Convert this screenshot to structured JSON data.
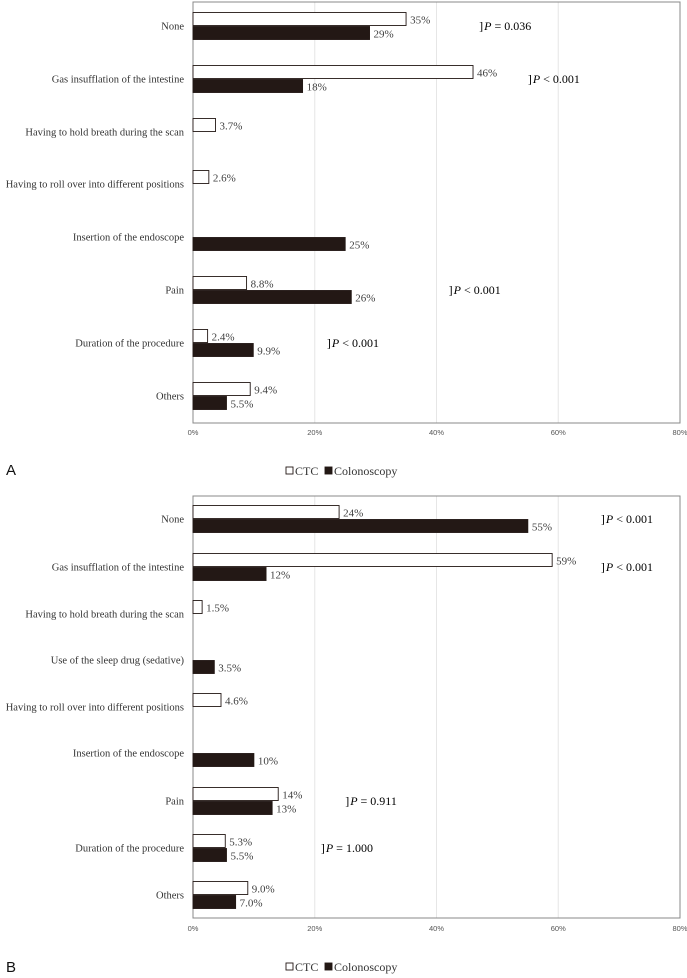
{
  "colors": {
    "ctc_fill": "#ffffff",
    "colonoscopy_fill": "#231815",
    "bar_stroke": "#231815",
    "grid": "#e6e6e6",
    "frame": "#888888"
  },
  "legend": {
    "items": [
      {
        "label": "CTC",
        "marker": "open-square"
      },
      {
        "label": "Colonoscopy",
        "marker": "filled-square"
      }
    ]
  },
  "chart_data": [
    {
      "panel_label": "A",
      "type": "bar",
      "orientation": "horizontal",
      "xlim": [
        0,
        80
      ],
      "x_ticks": [
        "0%",
        "20%",
        "40%",
        "60%",
        "80%"
      ],
      "grid": true,
      "legend_position": "bottom",
      "categories": [
        "None",
        "Gas insufflation of the intestine",
        "Having to hold breath during the scan",
        "Having to roll over into different positions",
        "Insertion of the endoscope",
        "Pain",
        "Duration of the procedure",
        "Others"
      ],
      "series": [
        {
          "name": "CTC",
          "values": [
            35,
            46,
            3.7,
            2.6,
            null,
            8.8,
            2.4,
            9.4
          ],
          "labels": [
            "35%",
            "46%",
            "3.7%",
            "2.6%",
            "",
            "8.8%",
            "2.4%",
            "9.4%"
          ]
        },
        {
          "name": "Colonoscopy",
          "values": [
            29,
            18,
            null,
            null,
            25,
            26,
            9.9,
            5.5
          ],
          "labels": [
            "29%",
            "18%",
            "",
            "",
            "25%",
            "26%",
            "9.9%",
            "5.5%"
          ]
        }
      ],
      "annotations": [
        {
          "category": "None",
          "p_label": "P",
          "rest": " = 0.036",
          "x_value": 47
        },
        {
          "category": "Gas insufflation of the intestine",
          "p_label": "P",
          "rest": " < 0.001",
          "x_value": 55
        },
        {
          "category": "Pain",
          "p_label": "P",
          "rest": " < 0.001",
          "x_value": 42
        },
        {
          "category": "Duration of the procedure",
          "p_label": "P",
          "rest": " < 0.001",
          "x_value": 22
        }
      ]
    },
    {
      "panel_label": "B",
      "type": "bar",
      "orientation": "horizontal",
      "xlim": [
        0,
        80
      ],
      "x_ticks": [
        "0%",
        "20%",
        "40%",
        "60%",
        "80%"
      ],
      "grid": true,
      "legend_position": "bottom",
      "categories": [
        "None",
        "Gas insufflation of the intestine",
        "Having to hold breath during the scan",
        "Use of the sleep drug (sedative)",
        "Having to roll over into different positions",
        "Insertion of the endoscope",
        "Pain",
        "Duration of the procedure",
        "Others"
      ],
      "series": [
        {
          "name": "CTC",
          "values": [
            24,
            59,
            1.5,
            null,
            4.6,
            null,
            14,
            5.3,
            9.0
          ],
          "labels": [
            "24%",
            "59%",
            "1.5%",
            "",
            "4.6%",
            "",
            "14%",
            "5.3%",
            "9.0%"
          ]
        },
        {
          "name": "Colonoscopy",
          "values": [
            55,
            12,
            null,
            3.5,
            null,
            10,
            13,
            5.5,
            7.0
          ],
          "labels": [
            "55%",
            "12%",
            "",
            "3.5%",
            "",
            "10%",
            "13%",
            "5.5%",
            "7.0%"
          ]
        }
      ],
      "annotations": [
        {
          "category": "None",
          "p_label": "P",
          "rest": " < 0.001",
          "x_value": 67
        },
        {
          "category": "Gas insufflation of the intestine",
          "p_label": "P",
          "rest": " < 0.001",
          "x_value": 67
        },
        {
          "category": "Pain",
          "p_label": "P",
          "rest": " = 0.911",
          "x_value": 25
        },
        {
          "category": "Duration of the procedure",
          "p_label": "P",
          "rest": " = 1.000",
          "x_value": 21
        }
      ]
    }
  ]
}
